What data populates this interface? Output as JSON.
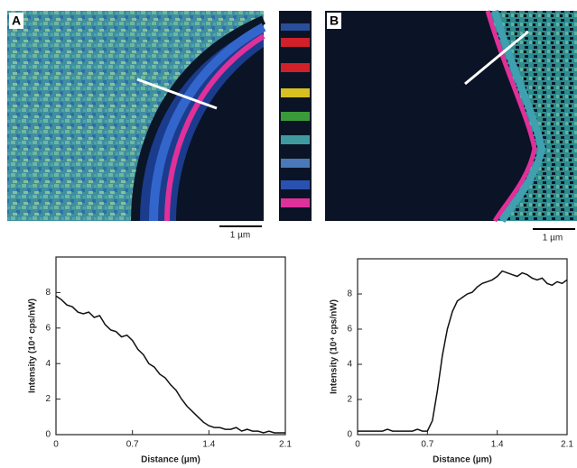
{
  "images": [
    {
      "label": "A",
      "scale_bar": "1 µm"
    },
    {
      "label": "B",
      "scale_bar": "1 µm"
    }
  ],
  "chart_data": [
    {
      "type": "line",
      "xlabel": "Distance (µm)",
      "ylabel": "Intensity (10⁴ cps/nW)",
      "x": [
        0,
        0.05,
        0.1,
        0.15,
        0.2,
        0.25,
        0.3,
        0.35,
        0.4,
        0.45,
        0.5,
        0.55,
        0.6,
        0.65,
        0.7,
        0.75,
        0.8,
        0.85,
        0.9,
        0.95,
        1.0,
        1.05,
        1.1,
        1.15,
        1.2,
        1.25,
        1.3,
        1.35,
        1.4,
        1.45,
        1.5,
        1.55,
        1.6,
        1.65,
        1.7,
        1.75,
        1.8,
        1.85,
        1.9,
        1.95,
        2.0,
        2.05,
        2.1
      ],
      "values": [
        7.8,
        7.6,
        7.3,
        7.2,
        6.9,
        6.8,
        6.9,
        6.6,
        6.7,
        6.2,
        5.9,
        5.8,
        5.5,
        5.6,
        5.3,
        4.8,
        4.5,
        4.0,
        3.8,
        3.4,
        3.2,
        2.8,
        2.5,
        2.0,
        1.6,
        1.3,
        1.0,
        0.7,
        0.5,
        0.4,
        0.4,
        0.3,
        0.3,
        0.4,
        0.2,
        0.3,
        0.2,
        0.2,
        0.1,
        0.2,
        0.1,
        0.1,
        0.1
      ],
      "color": "#111111",
      "xlim": [
        0,
        2.1
      ],
      "xticks": [
        0,
        0.7,
        1.4,
        2.1
      ],
      "ylim": [
        0,
        10
      ],
      "yticks": [
        0,
        2,
        4,
        6,
        8
      ]
    },
    {
      "type": "line",
      "xlabel": "Distance (µm)",
      "ylabel": "Intensity (10⁴ cps/nW)",
      "x": [
        0,
        0.05,
        0.1,
        0.15,
        0.2,
        0.25,
        0.3,
        0.35,
        0.4,
        0.45,
        0.5,
        0.55,
        0.6,
        0.65,
        0.7,
        0.75,
        0.8,
        0.85,
        0.9,
        0.95,
        1.0,
        1.05,
        1.1,
        1.15,
        1.2,
        1.25,
        1.3,
        1.35,
        1.4,
        1.45,
        1.5,
        1.55,
        1.6,
        1.65,
        1.7,
        1.75,
        1.8,
        1.85,
        1.9,
        1.95,
        2.0,
        2.05,
        2.1
      ],
      "values": [
        0.2,
        0.2,
        0.2,
        0.2,
        0.2,
        0.2,
        0.3,
        0.2,
        0.2,
        0.2,
        0.2,
        0.2,
        0.3,
        0.2,
        0.2,
        0.8,
        2.5,
        4.5,
        6.0,
        7.0,
        7.6,
        7.8,
        8.0,
        8.1,
        8.4,
        8.6,
        8.7,
        8.8,
        9.0,
        9.3,
        9.2,
        9.1,
        9.0,
        9.2,
        9.1,
        8.9,
        8.8,
        8.9,
        8.6,
        8.5,
        8.7,
        8.6,
        8.8
      ],
      "color": "#111111",
      "xlim": [
        0,
        2.1
      ],
      "xticks": [
        0,
        0.7,
        1.4,
        2.1
      ],
      "ylim": [
        0,
        10
      ],
      "yticks": [
        0,
        2,
        4,
        6,
        8
      ]
    }
  ]
}
